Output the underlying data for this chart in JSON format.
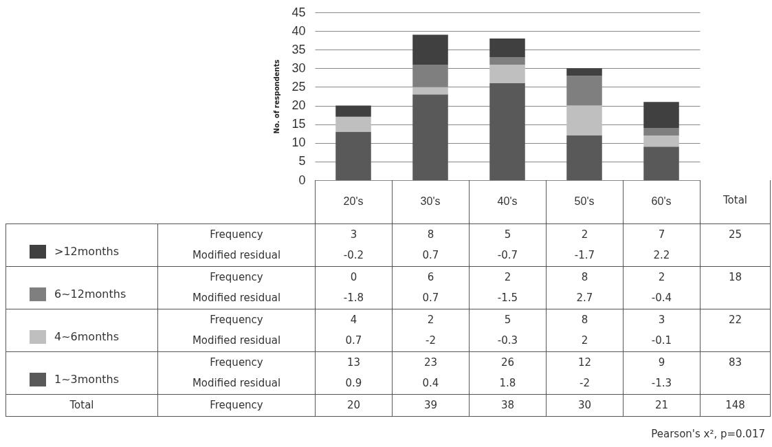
{
  "chart_data": {
    "type": "bar",
    "stacked": true,
    "ylabel": "No. of respondents",
    "categories": [
      "20's",
      "30's",
      "40's",
      "50's",
      "60's"
    ],
    "series": [
      {
        "name": "1~3months",
        "color": "#595959",
        "values": [
          13,
          23,
          26,
          12,
          9
        ]
      },
      {
        "name": "4~6months",
        "color": "#bfbfbf",
        "values": [
          4,
          2,
          5,
          8,
          3
        ]
      },
      {
        "name": "6~12months",
        "color": "#7f7f7f",
        "values": [
          0,
          6,
          2,
          8,
          2
        ]
      },
      {
        "name": ">12months",
        "color": "#404040",
        "values": [
          3,
          8,
          5,
          2,
          7
        ]
      }
    ],
    "ylim": [
      0,
      45
    ],
    "yticks": [
      0,
      5,
      10,
      15,
      20,
      25,
      30,
      35,
      40,
      45
    ],
    "grid": "y",
    "legend": "bottom left",
    "data_labels": true,
    "annotations": [
      "Frequency",
      "Modified residual",
      "Total",
      "Pearson's x², p=0.017",
      "25",
      "18",
      "22",
      "83",
      "148",
      "-0.2",
      "0.7",
      "-0.7",
      "-1.7",
      "2.2",
      "-1.8",
      "0.7",
      "-1.5",
      "2.7",
      "-0.4",
      "0.7",
      "-2",
      "-0.3",
      "2",
      "-0.1",
      "0.9",
      "0.4",
      "1.8",
      "-2",
      "-1.3",
      "20",
      "39",
      "38",
      "30",
      "21"
    ]
  }
}
